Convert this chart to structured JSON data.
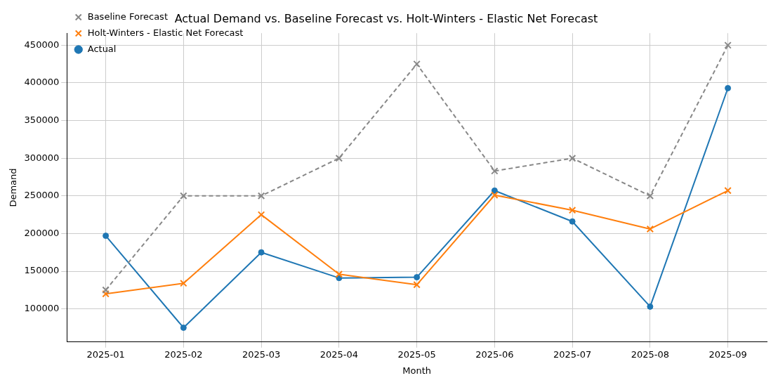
{
  "chart_data": {
    "type": "line",
    "title": "Actual Demand vs. Baseline Forecast vs. Holt-Winters - Elastic Net Forecast",
    "xlabel": "Month",
    "ylabel": "Demand",
    "categories": [
      "2025-01",
      "2025-02",
      "2025-03",
      "2025-04",
      "2025-05",
      "2025-06",
      "2025-07",
      "2025-08",
      "2025-09"
    ],
    "series": [
      {
        "name": "Actual",
        "color": "#1f77b4",
        "marker": "circle",
        "line_style": "solid",
        "values": [
          197000,
          75000,
          175000,
          141000,
          142000,
          257000,
          216000,
          103000,
          393000
        ]
      },
      {
        "name": "Holt-Winters - Elastic Net Forecast",
        "color": "#ff7f0e",
        "marker": "cross",
        "line_style": "solid",
        "values": [
          120000,
          134000,
          225000,
          146000,
          132000,
          251000,
          231000,
          206000,
          257000
        ]
      },
      {
        "name": "Baseline Forecast",
        "color": "#888888",
        "marker": "cross",
        "line_style": "dashed",
        "values": [
          125000,
          250000,
          250000,
          300000,
          425000,
          283000,
          300000,
          250000,
          450000
        ]
      }
    ],
    "ylim": [
      56000,
      466000
    ],
    "yticks": [
      100000,
      150000,
      200000,
      250000,
      300000,
      350000,
      400000,
      450000
    ],
    "grid": true,
    "legend": "top left"
  }
}
